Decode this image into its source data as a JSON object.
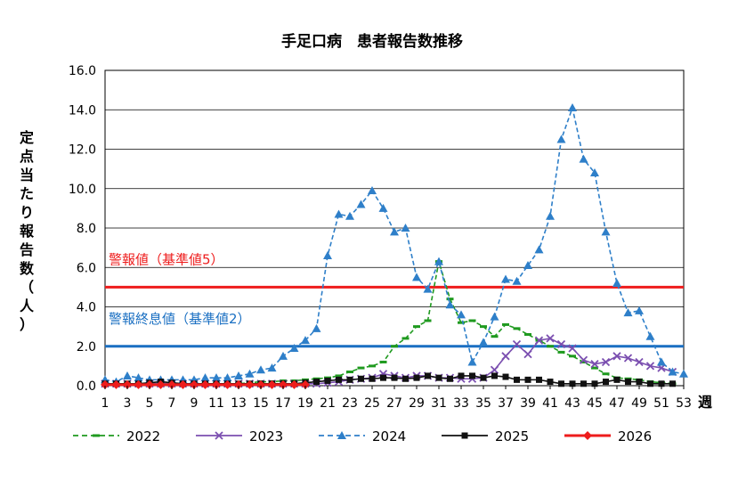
{
  "chart_data": {
    "type": "line",
    "title": "手足口病　患者報告数推移",
    "ylabel_chars": [
      "定",
      "点",
      "当",
      "た",
      "り",
      "報",
      "告",
      "数",
      "（",
      "人",
      "）"
    ],
    "xlabel": "週",
    "ylim": [
      0,
      16
    ],
    "yticks": [
      "0.0",
      "2.0",
      "4.0",
      "6.0",
      "8.0",
      "10.0",
      "12.0",
      "14.0",
      "16.0"
    ],
    "xlim": [
      1,
      53
    ],
    "xticks": [
      1,
      3,
      5,
      7,
      9,
      11,
      13,
      15,
      17,
      19,
      21,
      23,
      25,
      27,
      29,
      31,
      33,
      35,
      37,
      39,
      41,
      43,
      45,
      47,
      49,
      51,
      53
    ],
    "grid": true,
    "reference_lines": [
      {
        "label": "警報値（基準値5）",
        "value": 5,
        "color": "#ee1c1c"
      },
      {
        "label": "警報終息値（基準値2）",
        "value": 2,
        "color": "#1a6fc2"
      }
    ],
    "series": [
      {
        "name": "2022",
        "color": "#1f9a1f",
        "marker": "dash",
        "dashed": true,
        "values": [
          0.1,
          0.1,
          0.1,
          0.1,
          0.1,
          0.1,
          0.1,
          0.1,
          0.1,
          0.1,
          0.1,
          0.1,
          0.1,
          0.15,
          0.2,
          0.2,
          0.25,
          0.25,
          0.3,
          0.35,
          0.4,
          0.5,
          0.7,
          0.9,
          1.0,
          1.2,
          2.0,
          2.4,
          3.0,
          3.3,
          6.3,
          4.4,
          3.2,
          3.3,
          3.0,
          2.5,
          3.1,
          2.9,
          2.6,
          2.3,
          2.0,
          1.7,
          1.5,
          1.2,
          0.9,
          0.6,
          0.4,
          0.35,
          0.3,
          0.2,
          0.15,
          0.1
        ]
      },
      {
        "name": "2023",
        "color": "#7b4fb0",
        "marker": "x",
        "dashed": false,
        "values": [
          0.1,
          0.1,
          0.1,
          0.1,
          0.1,
          0.1,
          0.1,
          0.1,
          0.1,
          0.1,
          0.1,
          0.1,
          0.1,
          0.1,
          0.1,
          0.1,
          0.1,
          0.1,
          0.1,
          0.1,
          0.15,
          0.2,
          0.3,
          0.35,
          0.4,
          0.6,
          0.5,
          0.4,
          0.5,
          0.5,
          0.4,
          0.4,
          0.35,
          0.35,
          0.4,
          0.8,
          1.5,
          2.1,
          1.6,
          2.3,
          2.4,
          2.1,
          1.9,
          1.3,
          1.1,
          1.2,
          1.5,
          1.4,
          1.2,
          1.0,
          0.9,
          0.7
        ]
      },
      {
        "name": "2024",
        "color": "#2e7fc9",
        "marker": "triangle",
        "dashed": true,
        "values": [
          0.3,
          0.2,
          0.5,
          0.4,
          0.3,
          0.3,
          0.3,
          0.3,
          0.3,
          0.4,
          0.4,
          0.4,
          0.5,
          0.6,
          0.8,
          0.9,
          1.5,
          1.9,
          2.3,
          2.9,
          6.6,
          8.7,
          8.6,
          9.2,
          9.9,
          9.0,
          7.8,
          8.0,
          5.5,
          4.9,
          6.3,
          4.1,
          3.6,
          1.2,
          2.2,
          3.5,
          5.4,
          5.3,
          6.1,
          6.9,
          8.6,
          12.5,
          14.1,
          11.5,
          10.8,
          7.8,
          5.2,
          3.7,
          3.8,
          2.5,
          1.2,
          0.7,
          0.6
        ]
      },
      {
        "name": "2025",
        "color": "#111111",
        "marker": "square",
        "dashed": false,
        "values": [
          0.1,
          0.1,
          0.1,
          0.1,
          0.15,
          0.2,
          0.15,
          0.1,
          0.1,
          0.1,
          0.1,
          0.1,
          0.1,
          0.1,
          0.1,
          0.1,
          0.1,
          0.1,
          0.15,
          0.2,
          0.25,
          0.3,
          0.3,
          0.35,
          0.35,
          0.4,
          0.4,
          0.35,
          0.4,
          0.5,
          0.4,
          0.35,
          0.5,
          0.5,
          0.4,
          0.5,
          0.45,
          0.3,
          0.3,
          0.3,
          0.2,
          0.1,
          0.1,
          0.1,
          0.1,
          0.2,
          0.3,
          0.2,
          0.2,
          0.1,
          0.1,
          0.1
        ]
      },
      {
        "name": "2026",
        "color": "#ee1c1c",
        "marker": "diamond",
        "dashed": false,
        "values": [
          0.05,
          0.05,
          0.05,
          0.05,
          0.05,
          0.05,
          0.05,
          0.05,
          0.05,
          0.05,
          0.05,
          0.05,
          0.05,
          0.05,
          0.05,
          0.05,
          0.05,
          0.05,
          0.05
        ]
      }
    ]
  }
}
